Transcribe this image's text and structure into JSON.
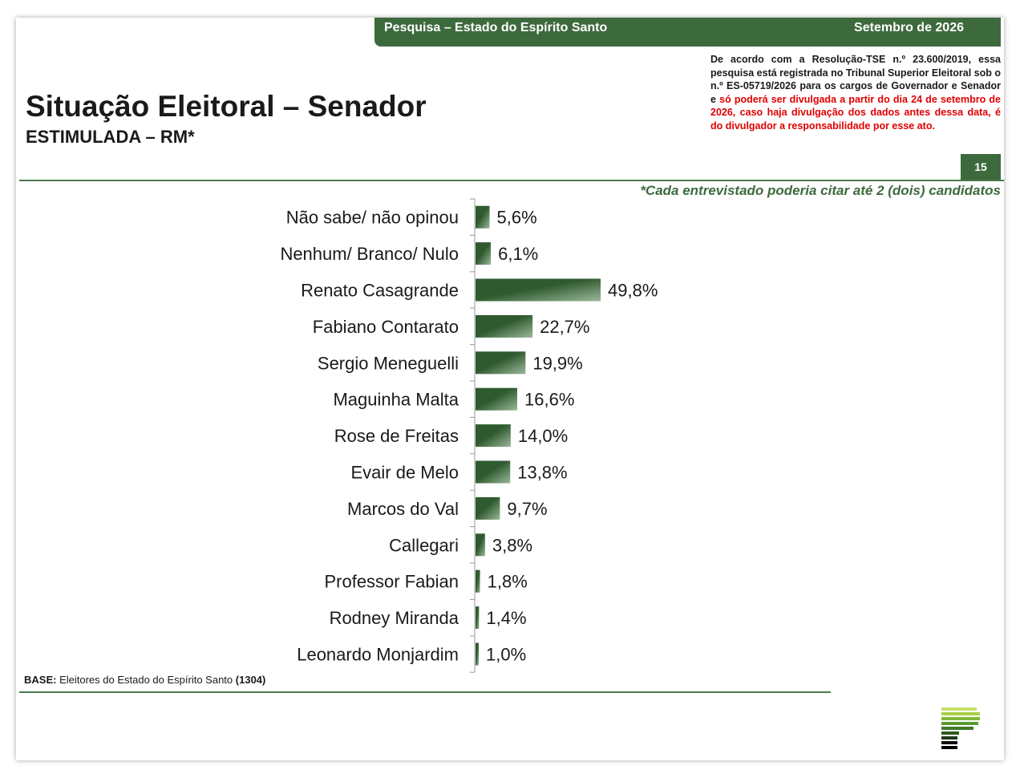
{
  "header": {
    "survey_label": "Pesquisa – Estado do Espírito Santo",
    "date_label": "Setembro de 2026"
  },
  "title": "Situação Eleitoral – Senador",
  "subtitle": "ESTIMULADA – RM*",
  "notice": {
    "black_text": "De acordo com a Resolução-TSE n.º 23.600/2019, essa pesquisa está registrada no Tribunal Superior Eleitoral sob o n.º ES-05719/2026 para os cargos de Governador e Senador e ",
    "red_text": "só poderá ser divulgada a partir do dia 24 de setembro de 2026, caso haja divulgação dos dados antes dessa data, é do divulgador a responsabilidade por esse ato."
  },
  "page_number": "15",
  "footnote": "*Cada entrevistado poderia citar até 2 (dois) candidatos",
  "base": {
    "label": "BASE:",
    "text": "Eleitores do Estado do Espírito Santo",
    "count": "(1304)"
  },
  "colors": {
    "bar_dark": "#2f5a2f",
    "bar_light": "#9bb89b",
    "accent": "#3d6a3d",
    "notice_red": "#e00000"
  },
  "chart_data": {
    "type": "bar",
    "orientation": "horizontal",
    "categories": [
      "Não sabe/ não opinou",
      "Nenhum/ Branco/ Nulo",
      "Renato Casagrande",
      "Fabiano Contarato",
      "Sergio Meneguelli",
      "Maguinha Malta",
      "Rose de Freitas",
      "Evair de Melo",
      "Marcos do Val",
      "Callegari",
      "Professor Fabian",
      "Rodney Miranda",
      "Leonardo Monjardim"
    ],
    "values": [
      5.6,
      6.1,
      49.8,
      22.7,
      19.9,
      16.6,
      14.0,
      13.8,
      9.7,
      3.8,
      1.8,
      1.4,
      1.0
    ],
    "value_labels": [
      "5,6%",
      "6,1%",
      "49,8%",
      "22,7%",
      "19,9%",
      "16,6%",
      "14,0%",
      "13,8%",
      "9,7%",
      "3,8%",
      "1,8%",
      "1,4%",
      "1,0%"
    ],
    "xlim": [
      0,
      50
    ],
    "grid": false,
    "legend": "none"
  }
}
